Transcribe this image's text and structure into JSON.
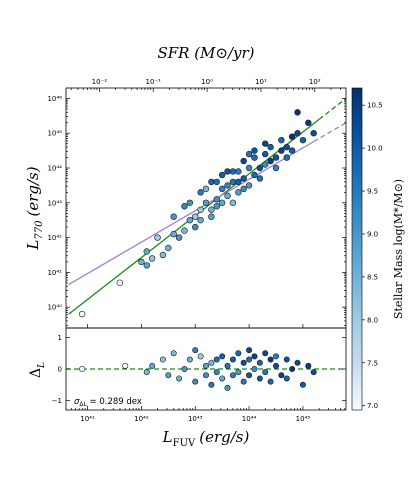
{
  "chart_data": {
    "type": "scatter",
    "top_axis": {
      "label": "SFR  (M⊙/yr)",
      "ticks": [
        {
          "value": -2,
          "label": "10⁻²"
        },
        {
          "value": -1,
          "label": "10⁻¹"
        },
        {
          "value": 0,
          "label": "10⁰"
        },
        {
          "value": 1,
          "label": "10¹"
        },
        {
          "value": 2,
          "label": "10²"
        }
      ],
      "log_sfr_at_log_lfuv_43": -0.22
    },
    "x_axis": {
      "label": "L",
      "label_sub": "FUV",
      "label_unit": "(erg/s)",
      "scale": "log",
      "xlim_log": [
        40.6,
        45.8
      ],
      "ticks": [
        {
          "value": 41,
          "label": "10⁴¹"
        },
        {
          "value": 42,
          "label": "10⁴²"
        },
        {
          "value": 43,
          "label": "10⁴³"
        },
        {
          "value": 44,
          "label": "10⁴⁴"
        },
        {
          "value": 45,
          "label": "10⁴⁵"
        }
      ]
    },
    "main_panel": {
      "ylabel": "L",
      "ylabel_sub": "770",
      "ylabel_unit": "(erg/s)",
      "ylim_log": [
        39.4,
        46.3
      ],
      "ticks": [
        {
          "value": 40,
          "label": "10⁴⁰"
        },
        {
          "value": 41,
          "label": "10⁴¹"
        },
        {
          "value": 42,
          "label": "10⁴²"
        },
        {
          "value": 43,
          "label": "10⁴³"
        },
        {
          "value": 44,
          "label": "10⁴⁴"
        },
        {
          "value": 45,
          "label": "10⁴⁵"
        },
        {
          "value": 46,
          "label": "10⁴⁶"
        }
      ],
      "fits": [
        {
          "color": "#1a8a1a",
          "x_start": 40.65,
          "y_start": 39.8,
          "x_end": 45.8,
          "y_end": 46.0,
          "solid_until": 45.3
        },
        {
          "color": "#9b7fd9",
          "x_start": 40.65,
          "y_start": 40.65,
          "x_end": 45.8,
          "y_end": 45.3,
          "solid_until": 45.2
        }
      ]
    },
    "residual_panel": {
      "ylabel": "Δ",
      "ylabel_sub": "L",
      "ylim": [
        -1.3,
        1.3
      ],
      "ticks": [
        {
          "value": 1,
          "label": "1"
        },
        {
          "value": 0,
          "label": "0"
        },
        {
          "value": -1,
          "label": "−1"
        }
      ],
      "zero_line_color": "#1a8a1a",
      "annotation": "σΔL = 0.289  dex",
      "annotation_parts": {
        "sigma": "σ",
        "sub": "ΔL",
        "rest": " = 0.289  dex"
      }
    },
    "colorbar": {
      "label": "Stellar Mass  log(M*/M⊙)",
      "range": [
        6.95,
        10.7
      ],
      "ticks": [
        {
          "value": 7.0,
          "label": "7.0"
        },
        {
          "value": 7.5,
          "label": "7.5"
        },
        {
          "value": 8.0,
          "label": "8.0"
        },
        {
          "value": 8.5,
          "label": "8.5"
        },
        {
          "value": 9.0,
          "label": "9.0"
        },
        {
          "value": 9.5,
          "label": "9.5"
        },
        {
          "value": 10.0,
          "label": "10.0"
        },
        {
          "value": 10.5,
          "label": "10.5"
        }
      ],
      "colors": [
        "#f7fbff",
        "#c6dbef",
        "#9ecae1",
        "#6baed6",
        "#4292c6",
        "#2171b5",
        "#08519c",
        "#08306b"
      ]
    },
    "points": [
      [
        40.9,
        39.8,
        7.0
      ],
      [
        41.6,
        40.7,
        7.0
      ],
      [
        42.0,
        41.3,
        8.5
      ],
      [
        42.1,
        41.2,
        8.8
      ],
      [
        42.2,
        41.4,
        8.2
      ],
      [
        42.1,
        41.6,
        8.7
      ],
      [
        42.3,
        42.0,
        8.0
      ],
      [
        42.4,
        41.5,
        8.3
      ],
      [
        42.5,
        41.7,
        8.5
      ],
      [
        42.6,
        42.1,
        8.6
      ],
      [
        42.7,
        42.0,
        9.0
      ],
      [
        42.8,
        42.2,
        8.4
      ],
      [
        42.9,
        42.5,
        8.7
      ],
      [
        43.0,
        42.3,
        9.2
      ],
      [
        42.8,
        42.9,
        9.3
      ],
      [
        43.1,
        42.8,
        8.1
      ],
      [
        43.2,
        43.0,
        8.9
      ],
      [
        42.6,
        42.6,
        9.0
      ],
      [
        43.0,
        42.6,
        8.0
      ],
      [
        43.3,
        42.8,
        8.5
      ],
      [
        43.1,
        43.3,
        9.5
      ],
      [
        43.4,
        43.1,
        9.1
      ],
      [
        43.3,
        43.6,
        9.8
      ],
      [
        43.5,
        43.4,
        9.4
      ],
      [
        43.6,
        43.2,
        8.6
      ],
      [
        43.2,
        43.4,
        8.4
      ],
      [
        43.4,
        43.6,
        9.7
      ],
      [
        43.5,
        43.8,
        9.9
      ],
      [
        43.7,
        43.6,
        9.6
      ],
      [
        43.8,
        43.3,
        8.9
      ],
      [
        43.6,
        43.9,
        10.1
      ],
      [
        43.8,
        43.9,
        9.5
      ],
      [
        43.9,
        43.7,
        10.0
      ],
      [
        44.0,
        44.0,
        9.3
      ],
      [
        44.0,
        43.5,
        9.0
      ],
      [
        43.9,
        44.2,
        10.3
      ],
      [
        44.1,
        43.8,
        9.8
      ],
      [
        44.1,
        44.3,
        9.7
      ],
      [
        44.2,
        44.0,
        10.2
      ],
      [
        44.2,
        43.7,
        9.6
      ],
      [
        44.3,
        44.4,
        10.0
      ],
      [
        44.3,
        44.1,
        9.2
      ],
      [
        44.4,
        44.2,
        10.5
      ],
      [
        44.4,
        44.6,
        9.9
      ],
      [
        44.5,
        44.3,
        10.1
      ],
      [
        44.5,
        44.0,
        9.4
      ],
      [
        44.6,
        44.5,
        10.4
      ],
      [
        44.6,
        44.8,
        9.8
      ],
      [
        44.7,
        44.6,
        10.2
      ],
      [
        44.7,
        44.3,
        9.7
      ],
      [
        44.8,
        44.9,
        10.6
      ],
      [
        44.8,
        44.5,
        10.0
      ],
      [
        44.9,
        45.0,
        10.3
      ],
      [
        45.0,
        44.8,
        9.9
      ],
      [
        45.1,
        45.3,
        10.5
      ],
      [
        45.2,
        45.0,
        10.2
      ],
      [
        44.9,
        45.6,
        10.6
      ],
      [
        43.7,
        43.0,
        8.3
      ],
      [
        43.5,
        43.0,
        8.7
      ],
      [
        43.9,
        43.4,
        9.2
      ],
      [
        42.9,
        43.0,
        9.1
      ],
      [
        43.3,
        42.6,
        8.8
      ],
      [
        43.1,
        42.5,
        8.6
      ],
      [
        43.7,
        43.9,
        9.8
      ],
      [
        44.1,
        44.5,
        10.1
      ],
      [
        44.3,
        44.7,
        10.3
      ],
      [
        44.0,
        44.4,
        9.6
      ],
      [
        43.4,
        42.9,
        9.0
      ],
      [
        43.6,
        43.5,
        9.3
      ],
      [
        43.8,
        43.6,
        9.9
      ]
    ],
    "residuals": [
      [
        40.9,
        0.0,
        7.0
      ],
      [
        41.7,
        0.1,
        7.0
      ],
      [
        42.1,
        -0.1,
        8.4
      ],
      [
        42.2,
        0.1,
        8.7
      ],
      [
        42.4,
        0.3,
        8.2
      ],
      [
        42.5,
        -0.2,
        8.9
      ],
      [
        42.7,
        -0.3,
        8.5
      ],
      [
        42.8,
        0.0,
        9.0
      ],
      [
        42.9,
        0.3,
        8.6
      ],
      [
        43.0,
        -0.4,
        9.2
      ],
      [
        43.1,
        0.4,
        8.0
      ],
      [
        43.2,
        -0.2,
        9.1
      ],
      [
        43.2,
        0.1,
        8.8
      ],
      [
        43.3,
        -0.5,
        9.5
      ],
      [
        43.3,
        0.2,
        8.4
      ],
      [
        43.4,
        0.3,
        9.7
      ],
      [
        43.4,
        -0.1,
        9.3
      ],
      [
        43.5,
        0.4,
        9.9
      ],
      [
        43.5,
        -0.3,
        8.7
      ],
      [
        43.6,
        0.1,
        9.6
      ],
      [
        43.6,
        -0.6,
        9.0
      ],
      [
        43.7,
        0.3,
        10.0
      ],
      [
        43.7,
        -0.2,
        9.4
      ],
      [
        43.8,
        0.5,
        9.8
      ],
      [
        43.8,
        -0.1,
        8.9
      ],
      [
        43.9,
        0.2,
        10.2
      ],
      [
        43.9,
        -0.4,
        9.5
      ],
      [
        44.0,
        0.3,
        9.7
      ],
      [
        44.0,
        -0.2,
        10.1
      ],
      [
        44.1,
        0.4,
        10.4
      ],
      [
        44.1,
        0.0,
        9.2
      ],
      [
        44.2,
        -0.3,
        10.0
      ],
      [
        44.2,
        0.2,
        9.9
      ],
      [
        44.3,
        0.5,
        10.3
      ],
      [
        44.3,
        -0.1,
        9.6
      ],
      [
        44.4,
        0.3,
        10.5
      ],
      [
        44.4,
        -0.4,
        9.8
      ],
      [
        44.5,
        0.1,
        10.2
      ],
      [
        44.5,
        0.4,
        9.4
      ],
      [
        44.6,
        -0.2,
        10.4
      ],
      [
        44.7,
        0.3,
        10.1
      ],
      [
        44.7,
        -0.3,
        9.9
      ],
      [
        44.8,
        0.0,
        10.6
      ],
      [
        44.9,
        0.2,
        10.3
      ],
      [
        45.0,
        -0.5,
        10.0
      ],
      [
        45.1,
        0.1,
        10.5
      ],
      [
        45.2,
        -0.1,
        10.2
      ],
      [
        42.6,
        0.5,
        8.3
      ],
      [
        43.0,
        0.6,
        9.4
      ],
      [
        44.0,
        0.6,
        10.3
      ]
    ]
  }
}
